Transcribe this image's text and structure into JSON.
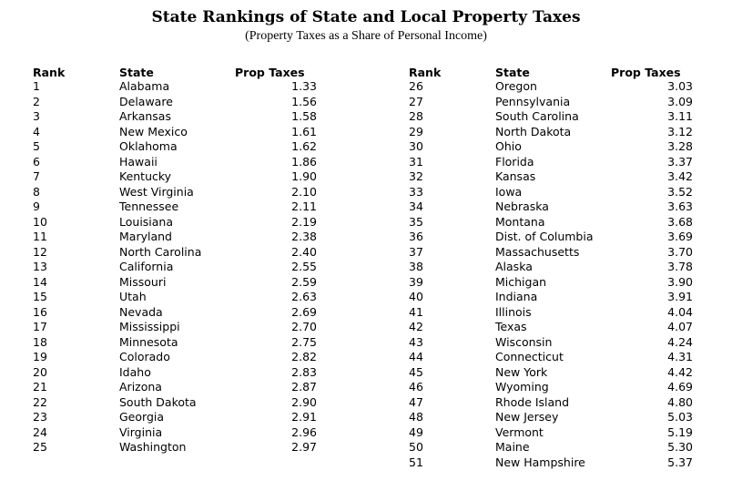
{
  "title": "State Rankings of State and Local Property Taxes",
  "subtitle": "(Property Taxes as a Share of Personal Income)",
  "headers": {
    "rank": "Rank",
    "state": "State",
    "tax": "Prop Taxes"
  },
  "left": [
    {
      "rank": "1",
      "state": "Alabama",
      "tax": "1.33"
    },
    {
      "rank": "2",
      "state": "Delaware",
      "tax": "1.56"
    },
    {
      "rank": "3",
      "state": "Arkansas",
      "tax": "1.58"
    },
    {
      "rank": "4",
      "state": "New Mexico",
      "tax": "1.61"
    },
    {
      "rank": "5",
      "state": "Oklahoma",
      "tax": "1.62"
    },
    {
      "rank": "6",
      "state": "Hawaii",
      "tax": "1.86"
    },
    {
      "rank": "7",
      "state": "Kentucky",
      "tax": "1.90"
    },
    {
      "rank": "8",
      "state": "West Virginia",
      "tax": "2.10"
    },
    {
      "rank": "9",
      "state": "Tennessee",
      "tax": "2.11"
    },
    {
      "rank": "10",
      "state": "Louisiana",
      "tax": "2.19"
    },
    {
      "rank": "11",
      "state": "Maryland",
      "tax": "2.38"
    },
    {
      "rank": "12",
      "state": "North Carolina",
      "tax": "2.40"
    },
    {
      "rank": "13",
      "state": "California",
      "tax": "2.55"
    },
    {
      "rank": "14",
      "state": "Missouri",
      "tax": "2.59"
    },
    {
      "rank": "15",
      "state": "Utah",
      "tax": "2.63"
    },
    {
      "rank": "16",
      "state": "Nevada",
      "tax": "2.69"
    },
    {
      "rank": "17",
      "state": "Mississippi",
      "tax": "2.70"
    },
    {
      "rank": "18",
      "state": "Minnesota",
      "tax": "2.75"
    },
    {
      "rank": "19",
      "state": "Colorado",
      "tax": "2.82"
    },
    {
      "rank": "20",
      "state": "Idaho",
      "tax": "2.83"
    },
    {
      "rank": "21",
      "state": "Arizona",
      "tax": "2.87"
    },
    {
      "rank": "22",
      "state": "South Dakota",
      "tax": "2.90"
    },
    {
      "rank": "23",
      "state": "Georgia",
      "tax": "2.91"
    },
    {
      "rank": "24",
      "state": "Virginia",
      "tax": "2.96"
    },
    {
      "rank": "25",
      "state": "Washington",
      "tax": "2.97"
    }
  ],
  "right": [
    {
      "rank": "26",
      "state": "Oregon",
      "tax": "3.03"
    },
    {
      "rank": "27",
      "state": "Pennsylvania",
      "tax": "3.09"
    },
    {
      "rank": "28",
      "state": "South Carolina",
      "tax": "3.11"
    },
    {
      "rank": "29",
      "state": "North Dakota",
      "tax": "3.12"
    },
    {
      "rank": "30",
      "state": "Ohio",
      "tax": "3.28"
    },
    {
      "rank": "31",
      "state": "Florida",
      "tax": "3.37"
    },
    {
      "rank": "32",
      "state": "Kansas",
      "tax": "3.42"
    },
    {
      "rank": "33",
      "state": "Iowa",
      "tax": "3.52"
    },
    {
      "rank": "34",
      "state": "Nebraska",
      "tax": "3.63"
    },
    {
      "rank": "35",
      "state": "Montana",
      "tax": "3.68"
    },
    {
      "rank": "36",
      "state": "Dist. of Columbia",
      "tax": "3.69"
    },
    {
      "rank": "37",
      "state": "Massachusetts",
      "tax": "3.70"
    },
    {
      "rank": "38",
      "state": "Alaska",
      "tax": "3.78"
    },
    {
      "rank": "39",
      "state": "Michigan",
      "tax": "3.90"
    },
    {
      "rank": "40",
      "state": "Indiana",
      "tax": "3.91"
    },
    {
      "rank": "41",
      "state": "Illinois",
      "tax": "4.04"
    },
    {
      "rank": "42",
      "state": "Texas",
      "tax": "4.07"
    },
    {
      "rank": "43",
      "state": "Wisconsin",
      "tax": "4.24"
    },
    {
      "rank": "44",
      "state": "Connecticut",
      "tax": "4.31"
    },
    {
      "rank": "45",
      "state": "New York",
      "tax": "4.42"
    },
    {
      "rank": "46",
      "state": "Wyoming",
      "tax": "4.69"
    },
    {
      "rank": "47",
      "state": "Rhode Island",
      "tax": "4.80"
    },
    {
      "rank": "48",
      "state": "New Jersey",
      "tax": "5.03"
    },
    {
      "rank": "49",
      "state": "Vermont",
      "tax": "5.19"
    },
    {
      "rank": "50",
      "state": "Maine",
      "tax": "5.30"
    },
    {
      "rank": "51",
      "state": "New Hampshire",
      "tax": "5.37"
    }
  ]
}
